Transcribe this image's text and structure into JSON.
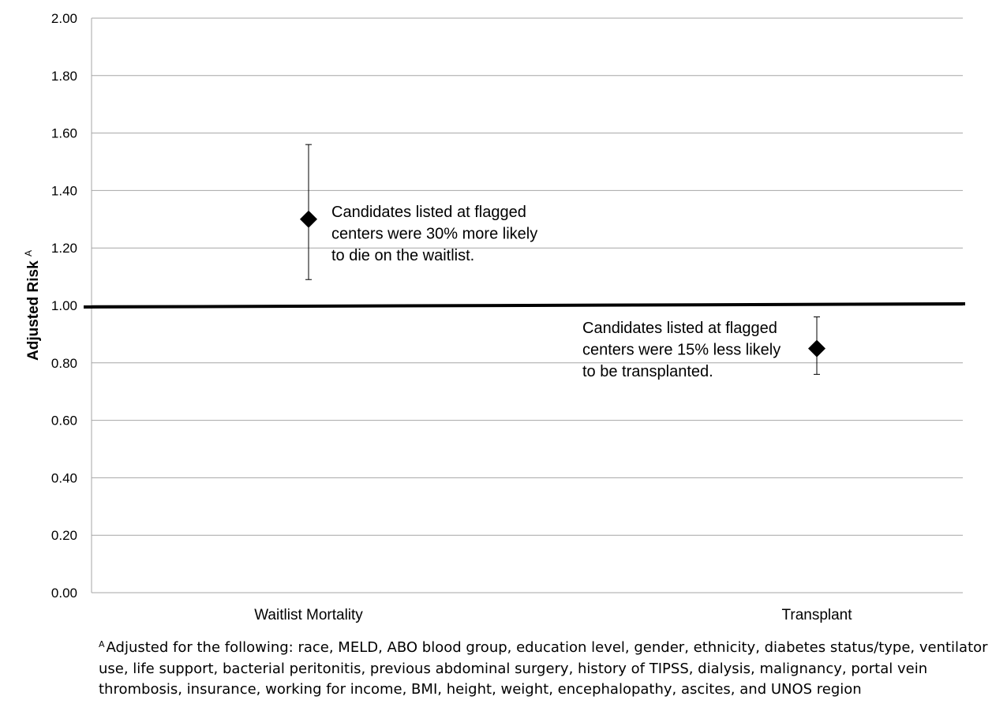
{
  "chart_data": {
    "type": "scatter",
    "title": "",
    "xlabel": "",
    "ylabel": "Adjusted Risk",
    "ylabel_superscript": "A",
    "ylim": [
      0,
      2
    ],
    "yticks": [
      "0.00",
      "0.20",
      "0.40",
      "0.60",
      "0.80",
      "1.00",
      "1.20",
      "1.40",
      "1.60",
      "1.80",
      "2.00"
    ],
    "grid": true,
    "reference_line": 1.0,
    "categories": [
      "Waitlist Mortality",
      "Transplant"
    ],
    "points": [
      {
        "category": "Waitlist Mortality",
        "value": 1.3,
        "ci_low": 1.09,
        "ci_high": 1.56,
        "annotation": [
          "Candidates listed at flagged",
          "centers were 30% more likely",
          "to die on the waitlist."
        ]
      },
      {
        "category": "Transplant",
        "value": 0.85,
        "ci_low": 0.76,
        "ci_high": 0.96,
        "annotation": [
          "Candidates listed at flagged",
          "centers were 15% less likely",
          "to be transplanted."
        ]
      }
    ]
  },
  "footnote": {
    "marker": "A",
    "text": "Adjusted for the following: race, MELD, ABO blood group, education level, gender, ethnicity, diabetes status/type, ventilator use, life support, bacterial peritonitis, previous abdominal surgery, history of TIPSS, dialysis, malignancy, portal vein thrombosis, insurance, working for income, BMI, height, weight, encephalopathy, ascites, and UNOS region"
  }
}
